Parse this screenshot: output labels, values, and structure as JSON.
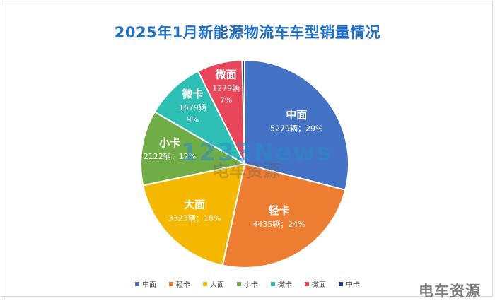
{
  "chart_data": {
    "type": "pie",
    "title": "2025年1月新能源物流车车型销量情况",
    "categories": [
      "中面",
      "轻卡",
      "大面",
      "小卡",
      "微卡",
      "微面",
      "中卡"
    ],
    "values": [
      5279,
      4435,
      3323,
      2122,
      1679,
      1279,
      70
    ],
    "unit": "辆",
    "percent": [
      "29%",
      "24%",
      "18%",
      "12%",
      "9%",
      "7%",
      ""
    ],
    "labels": [
      {
        "name": "中面",
        "detail": "5279辆；29%"
      },
      {
        "name": "轻卡",
        "detail": "4435辆；24%"
      },
      {
        "name": "大面",
        "detail": "3323辆；18%"
      },
      {
        "name": "小卡",
        "detail": "2122辆；12%"
      },
      {
        "name": "微卡",
        "detail": "1679辆",
        "detail2": "9%"
      },
      {
        "name": "微面",
        "detail": "1279辆",
        "detail2": "7%"
      }
    ],
    "colors": [
      "#4472c4",
      "#ed7d31",
      "#f5b800",
      "#70ad47",
      "#2ebfb4",
      "#e8465a",
      "#1f3a93"
    ],
    "legend_position": "bottom"
  },
  "watermark": {
    "main": "1233News",
    "sub": "电车资源",
    "corner": "电车资源"
  }
}
